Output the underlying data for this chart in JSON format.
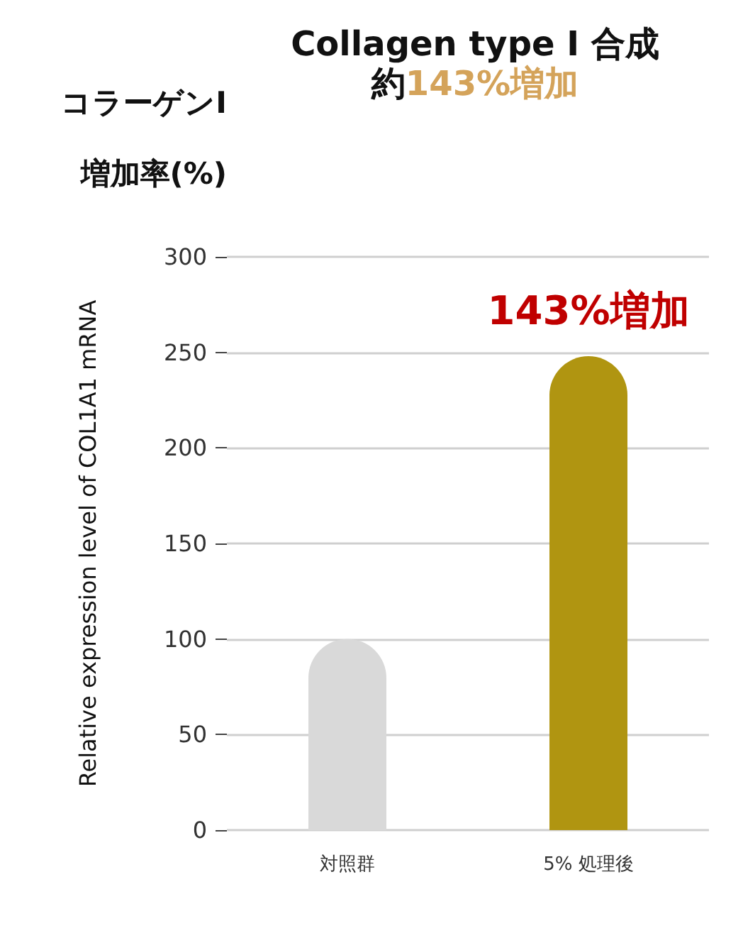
{
  "chart_data": {
    "type": "bar",
    "title": "Collagen type Ⅰ 合成",
    "subtitle": "約143%増加",
    "ylabel": "Relative expression level of COL1A1 mRNA",
    "categories": [
      "対照群",
      "5% 処理後"
    ],
    "values": [
      100,
      248
    ],
    "colors": [
      "#d9d9d9",
      "#b09511"
    ],
    "ylim": [
      0,
      300
    ],
    "yticks": [
      0,
      50,
      100,
      150,
      200,
      250,
      300
    ],
    "grid": "y",
    "annotations": [
      "コラーゲンI",
      "増加率(%)",
      "143%増加"
    ]
  }
}
